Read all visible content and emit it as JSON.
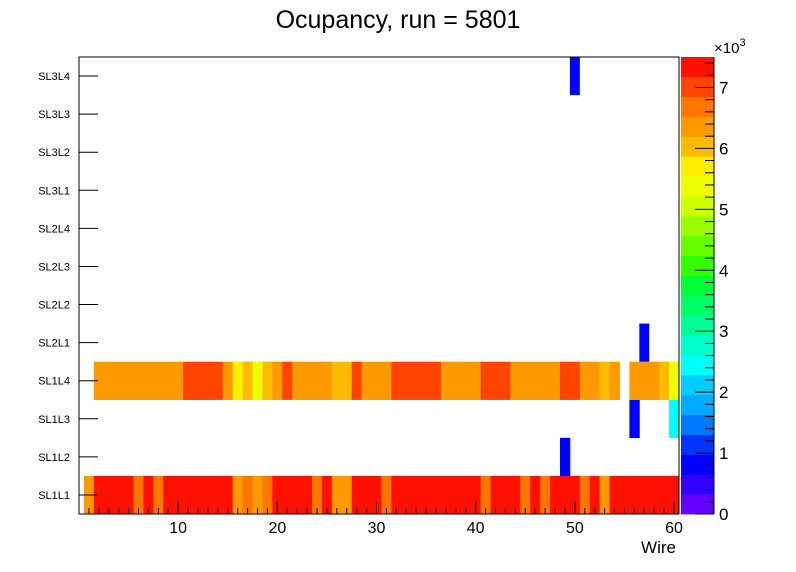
{
  "chart_data": {
    "type": "heatmap",
    "title": "Ocupancy, run = 5801",
    "xlabel": "Wire",
    "ylabel": "",
    "xlim": [
      0,
      60.5
    ],
    "x_ticks": [
      10,
      20,
      30,
      40,
      50,
      60
    ],
    "x_tick_labels": [
      "10",
      "20",
      "30",
      "40",
      "50",
      "60"
    ],
    "y_categories": [
      "SL1L1",
      "SL1L2",
      "SL1L3",
      "SL1L4",
      "SL2L1",
      "SL2L2",
      "SL2L3",
      "SL2L4",
      "SL3L1",
      "SL3L2",
      "SL3L3",
      "SL3L4"
    ],
    "colorbar": {
      "min": 0,
      "max": 7500,
      "exponent_label": "×10",
      "exponent_power": "3",
      "ticks": [
        0,
        1000,
        2000,
        3000,
        4000,
        5000,
        6000,
        7000
      ],
      "tick_labels": [
        "0",
        "1",
        "2",
        "3",
        "4",
        "5",
        "6",
        "7"
      ]
    },
    "rows": {
      "SL1L1": [
        6400,
        7300,
        7300,
        7300,
        7300,
        6800,
        7300,
        6800,
        7300,
        7300,
        7300,
        7300,
        7300,
        7300,
        7300,
        6400,
        6800,
        6200,
        6800,
        7300,
        7300,
        7300,
        7300,
        6800,
        7300,
        6400,
        6400,
        7300,
        7300,
        7300,
        6800,
        7300,
        7300,
        7300,
        7300,
        7300,
        7300,
        7300,
        7300,
        7300,
        6800,
        7300,
        7300,
        7300,
        6800,
        7300,
        6800,
        7300,
        7300,
        7300,
        6800,
        7300,
        6400,
        7300,
        7300,
        7300,
        7300,
        7300,
        7300,
        7300
      ],
      "SL1L2": [
        0,
        0,
        0,
        0,
        0,
        0,
        0,
        0,
        0,
        0,
        0,
        0,
        0,
        0,
        0,
        0,
        0,
        0,
        0,
        0,
        0,
        0,
        0,
        0,
        0,
        0,
        0,
        0,
        0,
        0,
        0,
        0,
        0,
        0,
        0,
        0,
        0,
        0,
        0,
        0,
        0,
        0,
        0,
        0,
        0,
        0,
        0,
        0,
        800,
        0,
        0,
        0,
        0,
        0,
        0,
        0,
        0,
        0,
        0,
        0
      ],
      "SL1L3": [
        0,
        0,
        0,
        0,
        0,
        0,
        0,
        0,
        0,
        0,
        0,
        0,
        0,
        0,
        0,
        0,
        0,
        0,
        0,
        0,
        0,
        0,
        0,
        0,
        0,
        0,
        0,
        0,
        0,
        0,
        0,
        0,
        0,
        0,
        0,
        0,
        0,
        0,
        0,
        0,
        0,
        0,
        0,
        0,
        0,
        0,
        0,
        0,
        0,
        0,
        0,
        0,
        0,
        0,
        0,
        800,
        0,
        0,
        0,
        2300
      ],
      "SL1L4": [
        0,
        6500,
        6500,
        6500,
        6500,
        6500,
        6500,
        6500,
        6500,
        6500,
        7000,
        7000,
        7000,
        7000,
        6500,
        5800,
        6100,
        5400,
        6100,
        6500,
        7000,
        6500,
        6500,
        6500,
        6500,
        6100,
        6100,
        7000,
        6500,
        6500,
        6500,
        7000,
        7000,
        7000,
        7000,
        7000,
        6500,
        6500,
        6500,
        6500,
        7000,
        7000,
        7000,
        6500,
        6500,
        6500,
        6500,
        6500,
        7000,
        7000,
        6500,
        6500,
        6100,
        6500,
        0,
        6500,
        6500,
        6500,
        6100,
        5300
      ]
    },
    "single_cells": [
      {
        "row": "SL2L1",
        "wire": 57,
        "value": 800
      },
      {
        "row": "SL3L4",
        "wire": 50,
        "value": 800
      }
    ]
  }
}
